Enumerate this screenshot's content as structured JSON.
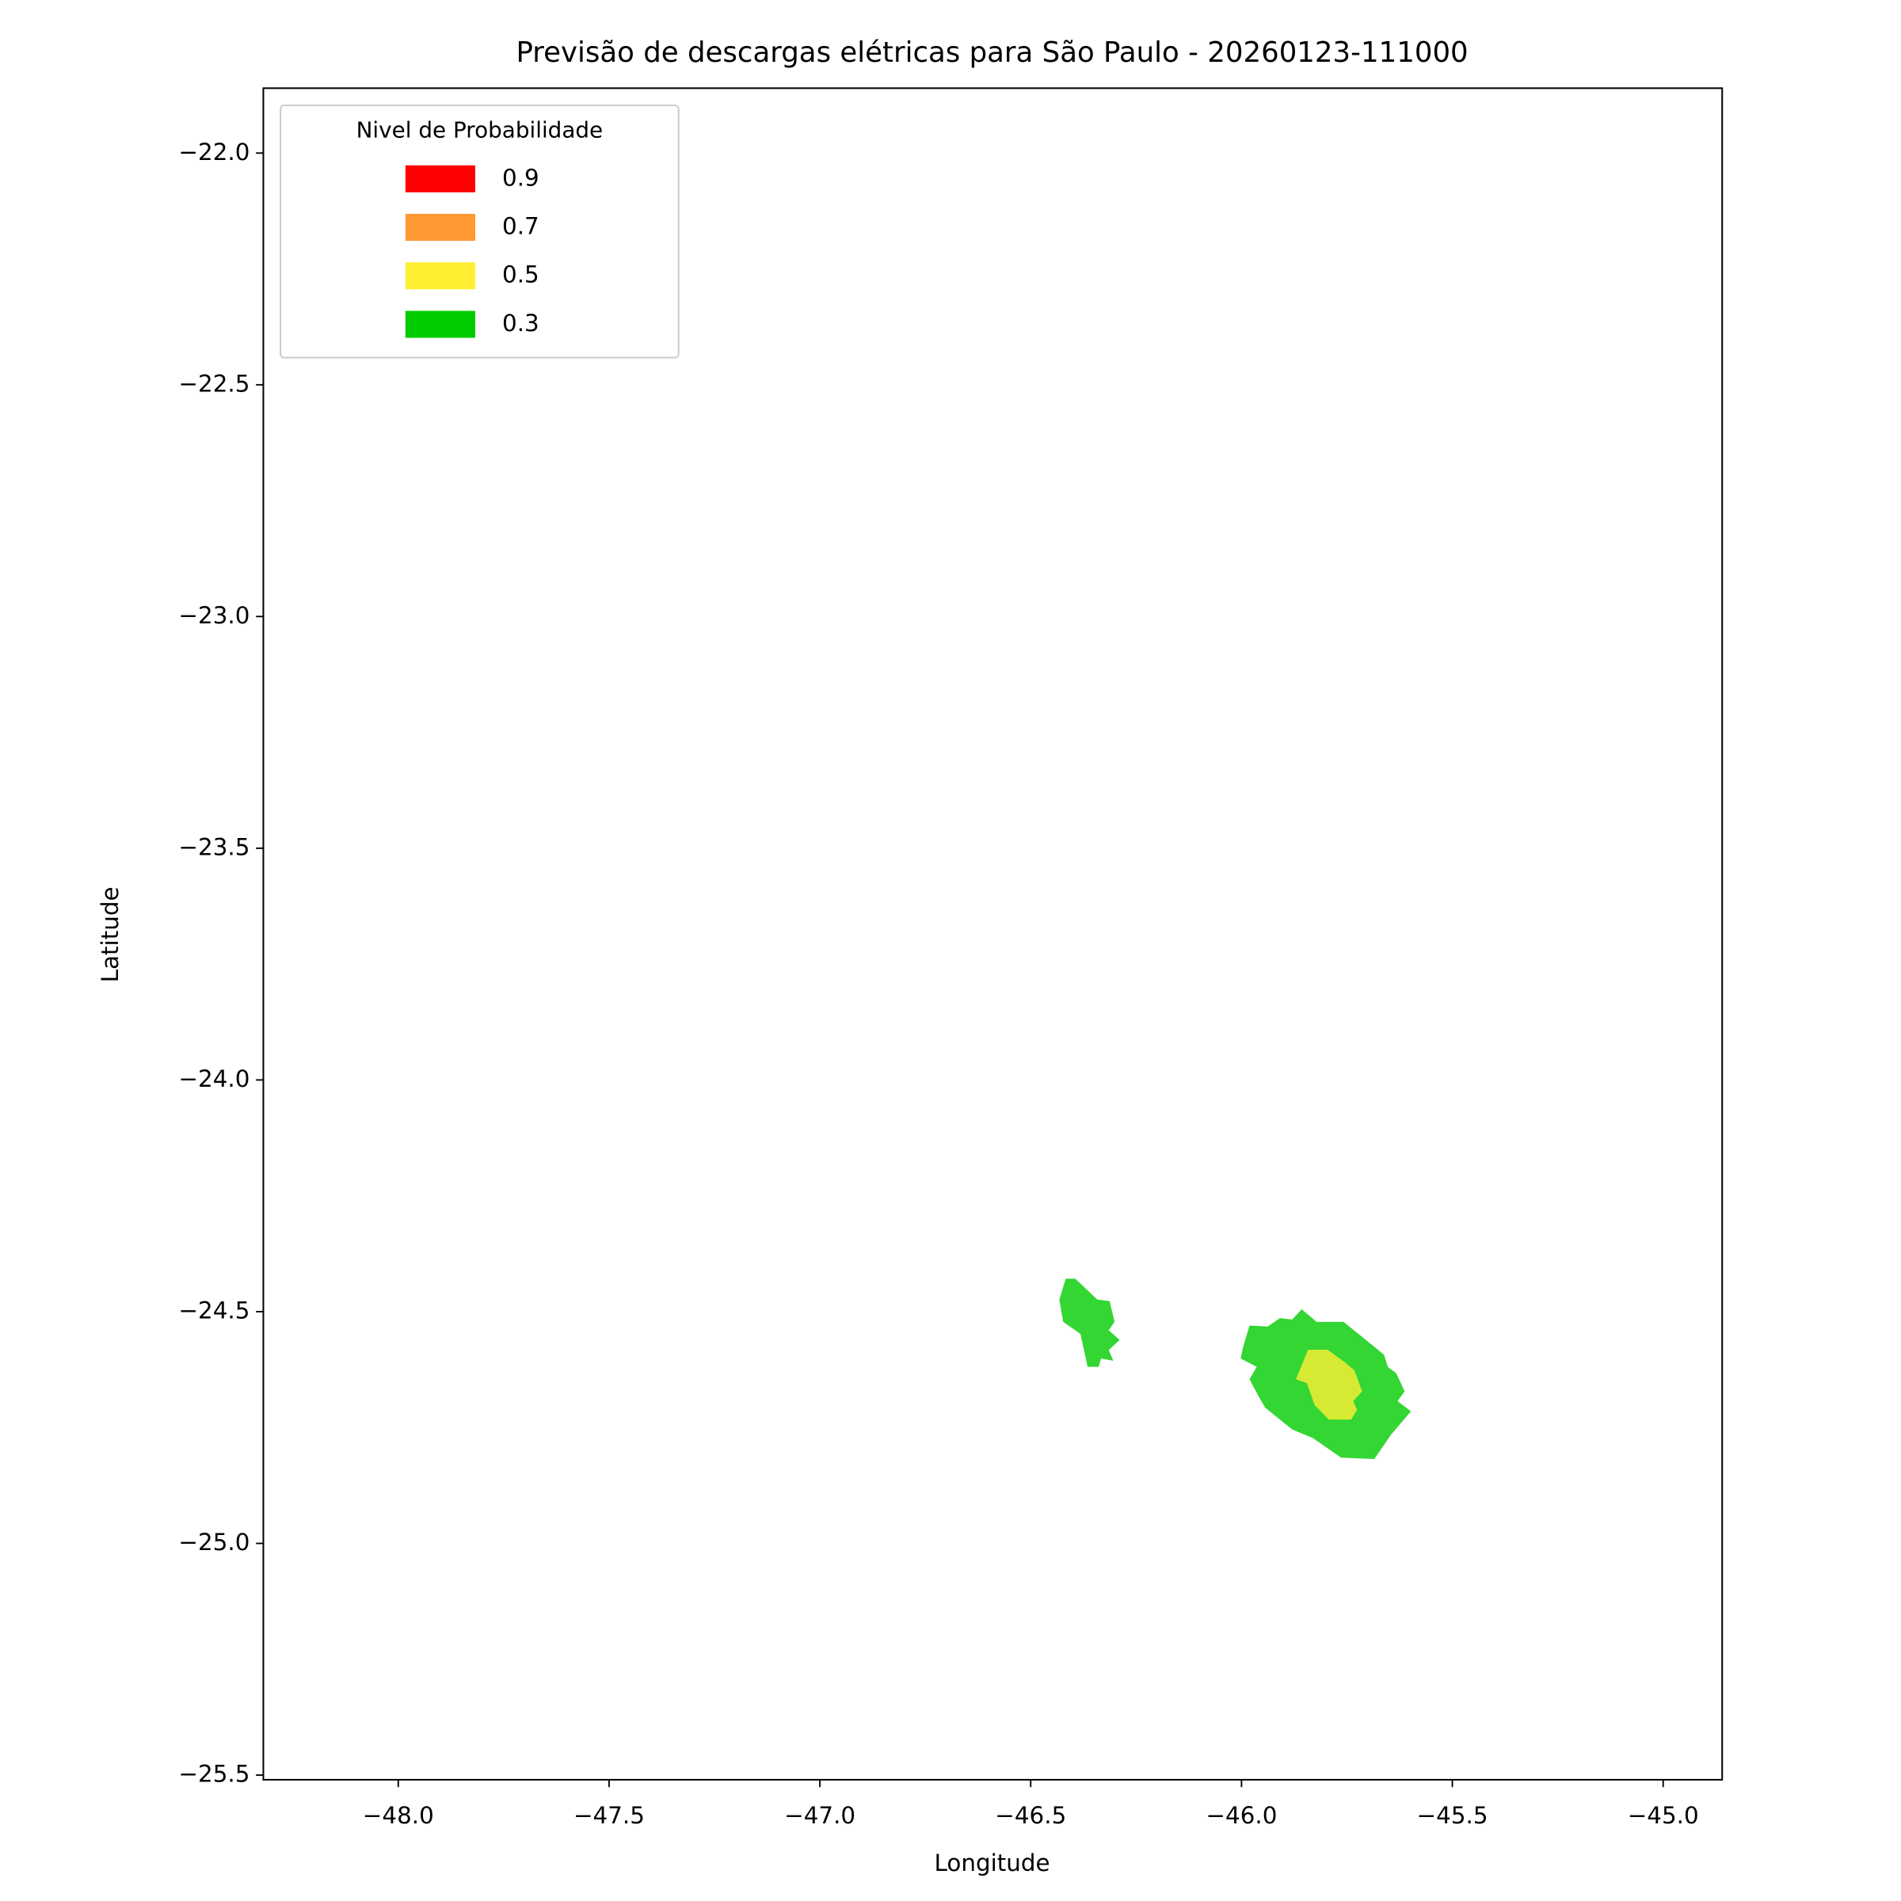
{
  "chart_data": {
    "type": "contour",
    "title": "Previsão de descargas elétricas para São Paulo - 20260123-111000",
    "x_label": "Longitude",
    "y_label": "Latitude",
    "xlim": [
      -48.32,
      -44.86
    ],
    "ylim": [
      -25.51,
      -21.86
    ],
    "xticks": [
      {
        "value": -48.0,
        "label": "−48.0"
      },
      {
        "value": -47.5,
        "label": "−47.5"
      },
      {
        "value": -47.0,
        "label": "−47.0"
      },
      {
        "value": -46.5,
        "label": "−46.5"
      },
      {
        "value": -46.0,
        "label": "−46.0"
      },
      {
        "value": -45.5,
        "label": "−45.5"
      },
      {
        "value": -45.0,
        "label": "−45.0"
      }
    ],
    "yticks": [
      {
        "value": -22.0,
        "label": "−22.0"
      },
      {
        "value": -22.5,
        "label": "−22.5"
      },
      {
        "value": -23.0,
        "label": "−23.0"
      },
      {
        "value": -23.5,
        "label": "−23.5"
      },
      {
        "value": -24.0,
        "label": "−24.0"
      },
      {
        "value": -24.5,
        "label": "−24.5"
      },
      {
        "value": -25.0,
        "label": "−25.0"
      },
      {
        "value": -25.5,
        "label": "−25.5"
      }
    ],
    "legend_title": "Nivel de Probabilidade",
    "legend_position": "upper left",
    "fill_opacity": 0.8,
    "series": [
      {
        "name": "0.9",
        "color": "#ff0000",
        "polygons": []
      },
      {
        "name": "0.7",
        "color": "#ff9933",
        "polygons": []
      },
      {
        "name": "0.5",
        "color": "#ffef33",
        "polygons": [
          {
            "x": [
              -45.842,
              -45.796,
              -45.755,
              -45.732,
              -45.714,
              -45.735,
              -45.726,
              -45.74,
              -45.793,
              -45.827,
              -45.845,
              -45.871
            ],
            "y": [
              -24.582,
              -24.582,
              -24.609,
              -24.627,
              -24.672,
              -24.693,
              -24.712,
              -24.733,
              -24.733,
              -24.701,
              -24.654,
              -24.646
            ]
          }
        ]
      },
      {
        "name": "0.3",
        "color": "#00cc00",
        "polygons": [
          {
            "x": [
              -46.417,
              -46.394,
              -46.342,
              -46.313,
              -46.301,
              -46.315,
              -46.289,
              -46.315,
              -46.304,
              -46.333,
              -46.339,
              -46.365,
              -46.382,
              -46.423,
              -46.432
            ],
            "y": [
              -24.429,
              -24.429,
              -24.474,
              -24.477,
              -24.522,
              -24.54,
              -24.561,
              -24.583,
              -24.606,
              -24.601,
              -24.619,
              -24.619,
              -24.548,
              -24.522,
              -24.474
            ]
          },
          {
            "x": [
              -45.981,
              -45.938,
              -45.909,
              -45.88,
              -45.857,
              -45.822,
              -45.758,
              -45.697,
              -45.662,
              -45.653,
              -45.633,
              -45.613,
              -45.63,
              -45.598,
              -45.645,
              -45.685,
              -45.764,
              -45.83,
              -45.88,
              -45.944,
              -45.961,
              -45.981,
              -45.964,
              -46.002,
              -45.996
            ],
            "y": [
              -24.53,
              -24.532,
              -24.514,
              -24.517,
              -24.495,
              -24.522,
              -24.522,
              -24.567,
              -24.593,
              -24.619,
              -24.633,
              -24.672,
              -24.693,
              -24.715,
              -24.765,
              -24.818,
              -24.815,
              -24.773,
              -24.754,
              -24.707,
              -24.68,
              -24.646,
              -24.619,
              -24.601,
              -24.575
            ]
          }
        ]
      }
    ]
  }
}
